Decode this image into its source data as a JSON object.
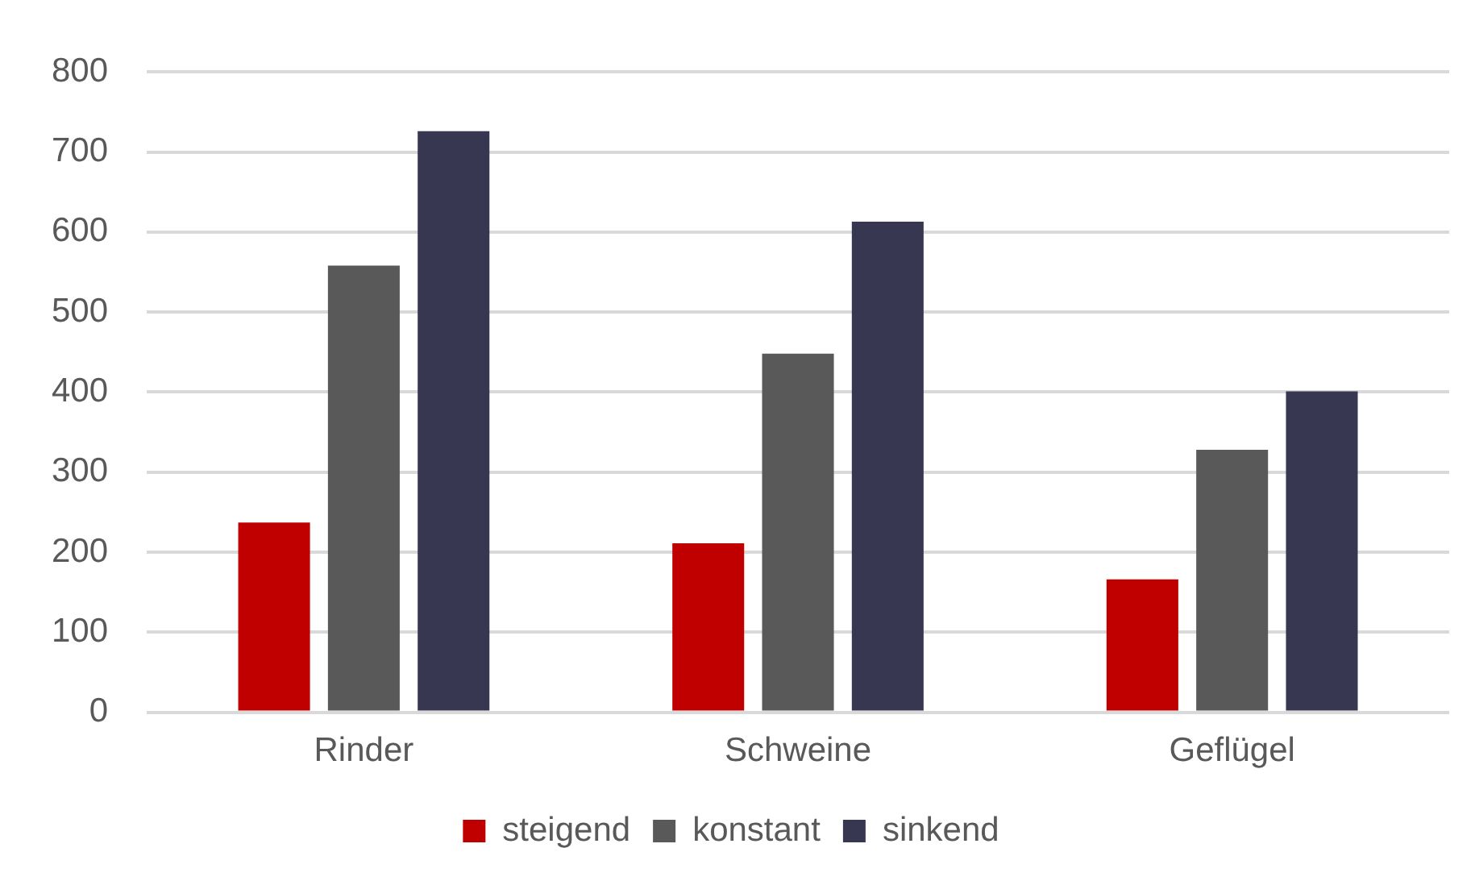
{
  "chart_data": {
    "type": "bar",
    "categories": [
      "Rinder",
      "Schweine",
      "Geflügel"
    ],
    "series": [
      {
        "name": "steigend",
        "color": "#c00000",
        "values": [
          237,
          211,
          166
        ]
      },
      {
        "name": "konstant",
        "color": "#595959",
        "values": [
          558,
          448,
          328
        ]
      },
      {
        "name": "sinkend",
        "color": "#383751",
        "values": [
          726,
          613,
          401
        ]
      }
    ],
    "ylim": [
      0,
      800
    ],
    "yticks": [
      0,
      100,
      200,
      300,
      400,
      500,
      600,
      700,
      800
    ],
    "grid": "y",
    "legend": "bottom"
  }
}
